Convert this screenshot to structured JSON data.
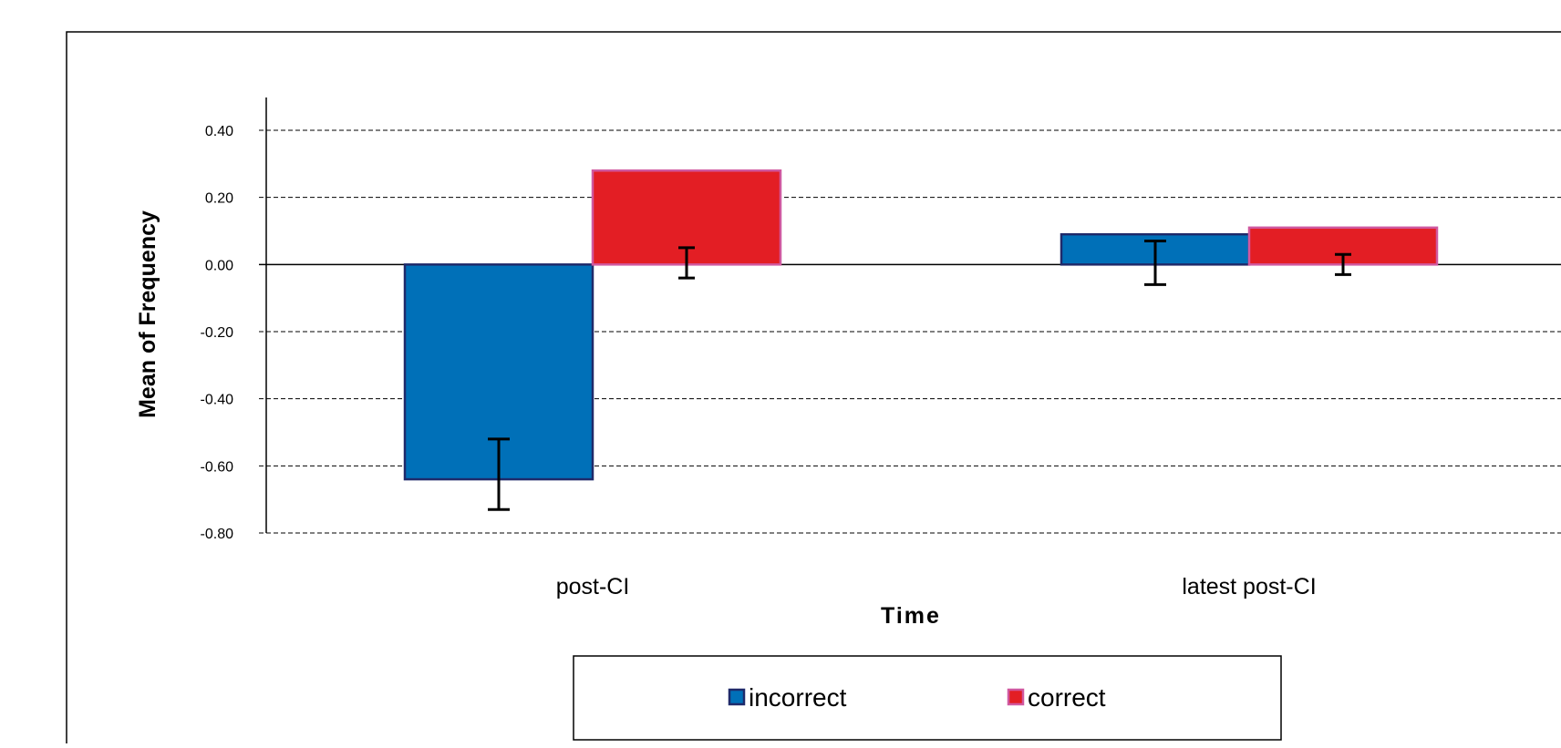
{
  "chart_data": {
    "type": "bar",
    "xlabel": "Time",
    "ylabel": "Mean of Frequency",
    "categories": [
      "post-CI",
      "latest post-CI"
    ],
    "series": [
      {
        "name": "incorrect",
        "color": "#0070b8",
        "border_color": "#1f2a6a",
        "values": [
          -0.64,
          0.09
        ],
        "error_low": [
          -0.73,
          -0.06
        ],
        "error_high": [
          -0.52,
          0.07
        ]
      },
      {
        "name": "correct",
        "color": "#e31e24",
        "border_color": "#d0589f",
        "values": [
          0.28,
          0.11
        ],
        "error_low": [
          -0.04,
          -0.03
        ],
        "error_high": [
          0.05,
          0.03
        ]
      }
    ],
    "ylim": [
      -0.8,
      0.4
    ],
    "yticks": [
      "0.40",
      "0.20",
      "0.00",
      "-0.20",
      "-0.40",
      "-0.60",
      "-0.80"
    ],
    "grid": true,
    "legend_position": "bottom-center"
  }
}
